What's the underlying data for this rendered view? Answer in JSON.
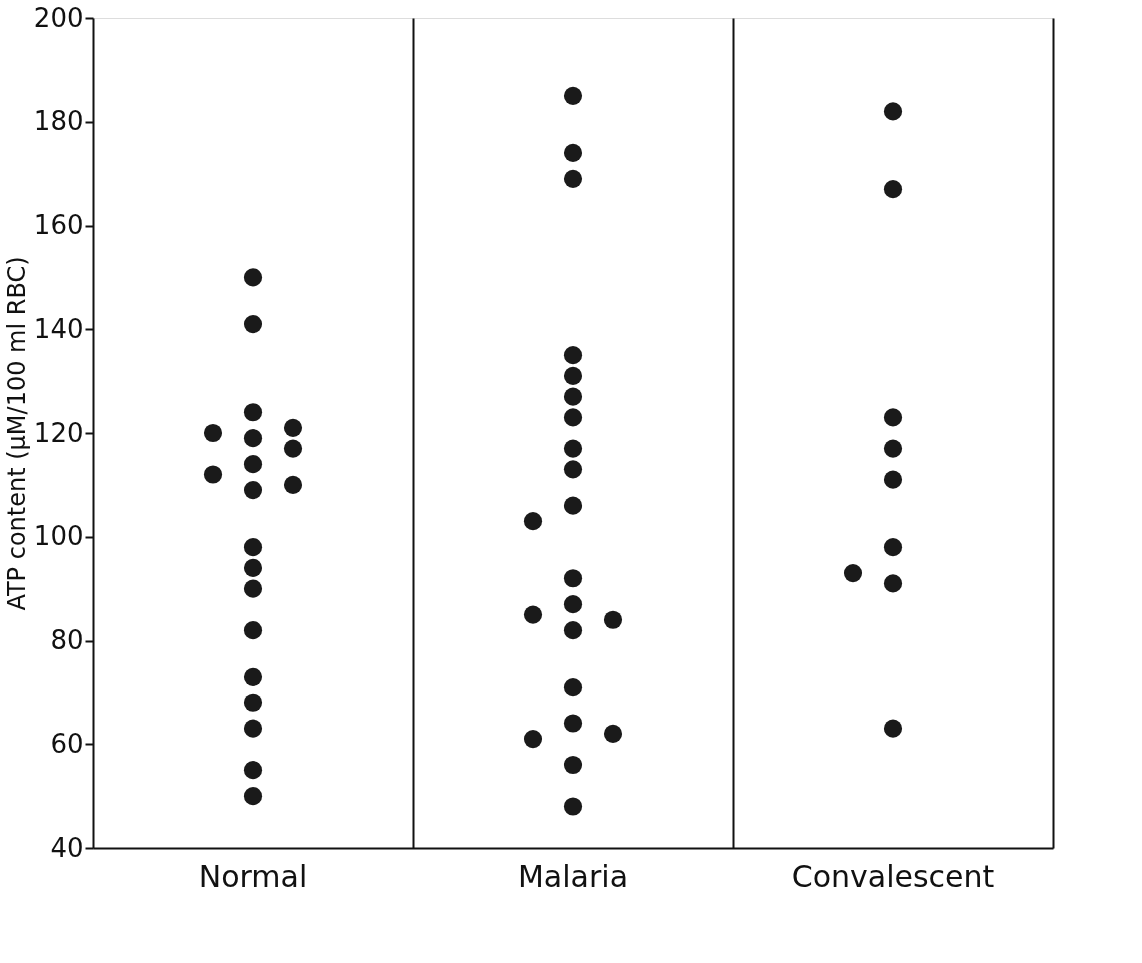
{
  "chart_data": {
    "type": "scatter",
    "ylabel": "ATP content (μM/100 ml RBC)",
    "categories": [
      "Normal",
      "Malaria",
      "Convalescent"
    ],
    "series": [
      {
        "color": "#1a1a1a",
        "x": [
          "Normal",
          "Normal",
          "Normal",
          "Normal",
          "Normal",
          "Normal",
          "Normal",
          "Normal",
          "Normal",
          "Normal",
          "Normal",
          "Normal",
          "Normal",
          "Normal",
          "Normal",
          "Normal",
          "Normal",
          "Normal",
          "Normal",
          "Normal"
        ],
        "values": [
          150,
          141,
          124,
          119,
          120,
          121,
          117,
          114,
          109,
          112,
          110,
          98,
          94,
          90,
          82,
          73,
          68,
          63,
          55,
          50
        ]
      },
      {
        "color": "#1a1a1a",
        "x": [
          "Malaria",
          "Malaria",
          "Malaria",
          "Malaria",
          "Malaria",
          "Malaria",
          "Malaria",
          "Malaria",
          "Malaria",
          "Malaria",
          "Malaria",
          "Malaria",
          "Malaria",
          "Malaria",
          "Malaria",
          "Malaria",
          "Malaria",
          "Malaria",
          "Malaria",
          "Malaria",
          "Malaria",
          "Malaria"
        ],
        "values": [
          185,
          174,
          169,
          135,
          131,
          127,
          123,
          117,
          113,
          106,
          103,
          92,
          87,
          85,
          84,
          82,
          71,
          64,
          61,
          62,
          56,
          48
        ]
      },
      {
        "color": "#1a1a1a",
        "x": [
          "Convalescent",
          "Convalescent",
          "Convalescent",
          "Convalescent",
          "Convalescent",
          "Convalescent",
          "Convalescent",
          "Convalescent",
          "Convalescent"
        ],
        "values": [
          182,
          167,
          123,
          117,
          111,
          98,
          91,
          93,
          63
        ]
      }
    ],
    "ylim": [
      40,
      200
    ],
    "yticks": [
      40,
      60,
      80,
      100,
      120,
      140,
      160,
      180,
      200
    ],
    "grid": "x",
    "marker": "circle"
  }
}
